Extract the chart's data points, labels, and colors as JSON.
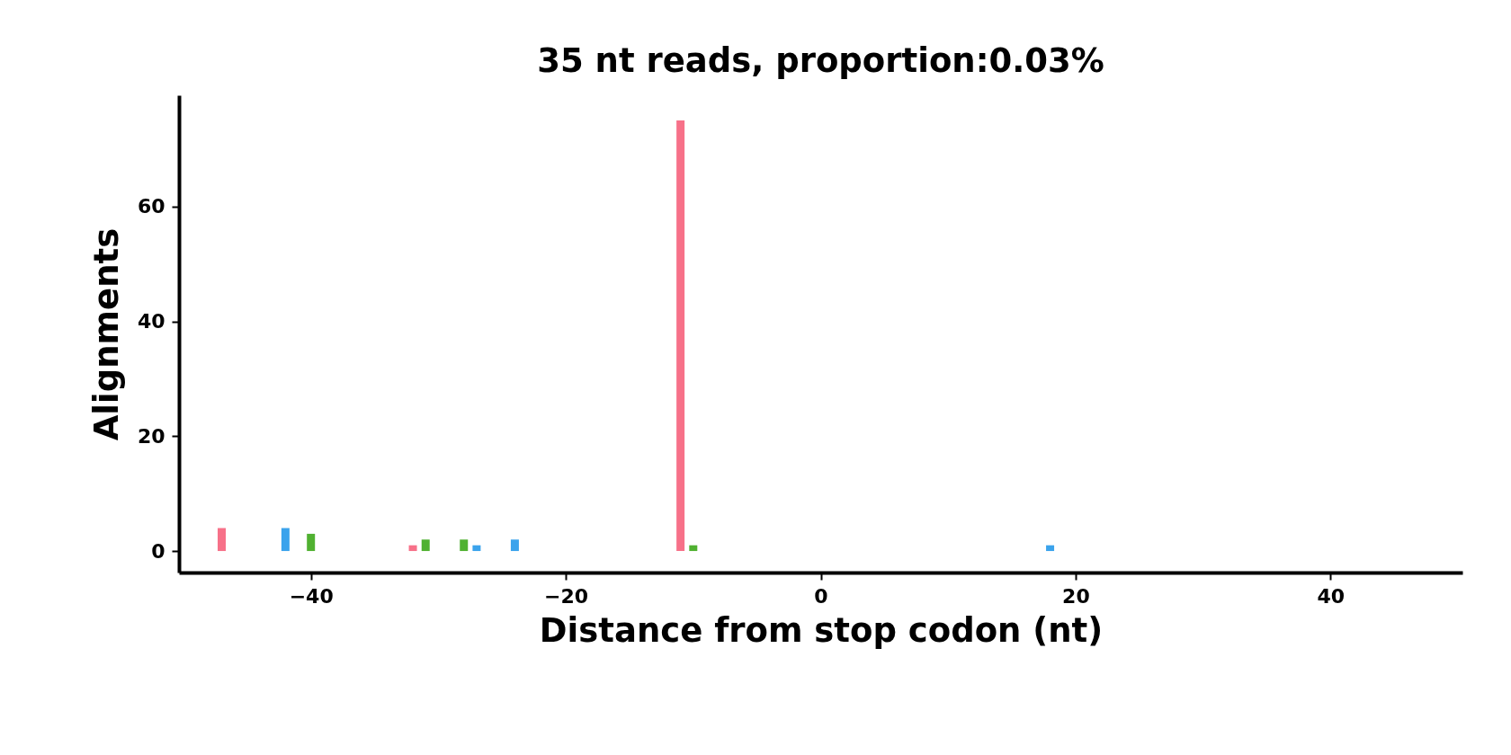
{
  "chart_data": {
    "type": "bar",
    "title": "35 nt reads, proportion:0.03%",
    "xlabel": "Distance from stop codon (nt)",
    "ylabel": "Alignments",
    "series": [
      {
        "color": "#f77189",
        "x": [
          -47,
          -32,
          -11
        ],
        "values": [
          4,
          1,
          75
        ]
      },
      {
        "color": "#50b131",
        "x": [
          -40,
          -31,
          -28,
          -10
        ],
        "values": [
          3,
          2,
          2,
          1
        ]
      },
      {
        "color": "#3ba3ec",
        "x": [
          -42,
          -27,
          -24,
          18
        ],
        "values": [
          4,
          1,
          2,
          1
        ]
      }
    ],
    "xlim": [
      -50,
      50
    ],
    "xticks": [
      -40,
      -20,
      0,
      20,
      40
    ],
    "ylim": [
      -3.75,
      79.4
    ],
    "yticks": [
      0,
      20,
      40,
      60
    ],
    "grid": false
  }
}
